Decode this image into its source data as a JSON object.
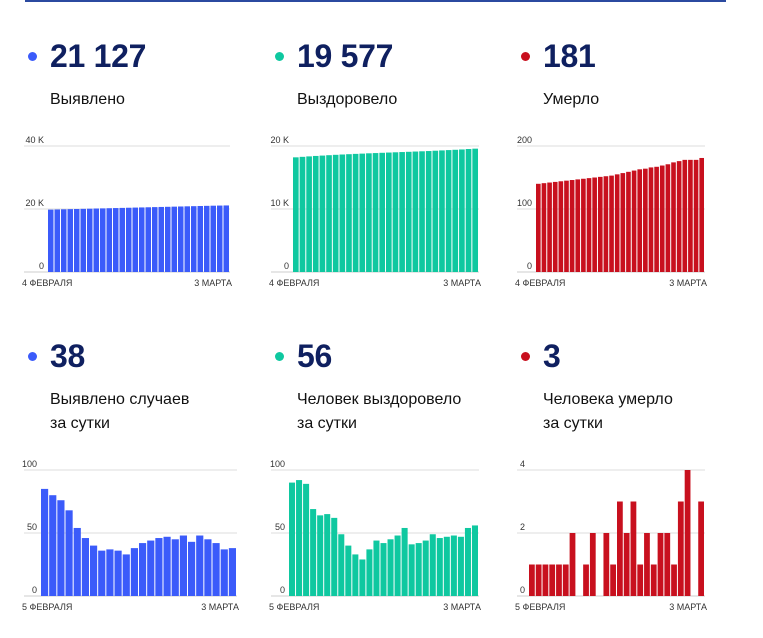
{
  "panels": [
    {
      "id": "detected",
      "color": "#3b5bfa",
      "value": "21 127",
      "label_lines": [
        "Выявлено"
      ],
      "chart_data": {
        "type": "bar",
        "title": "",
        "xlabel": "",
        "ylabel": "",
        "ylim": [
          0,
          40000
        ],
        "y_ticks": [
          0,
          20000,
          40000
        ],
        "y_tick_labels": [
          "0",
          "20 K",
          "40 K"
        ],
        "x_labels": [
          "4 ФЕВРАЛЯ",
          "3 МАРТА"
        ],
        "grid": true,
        "values": [
          19800,
          19850,
          19900,
          19960,
          20000,
          20050,
          20100,
          20160,
          20200,
          20250,
          20300,
          20350,
          20400,
          20450,
          20500,
          20550,
          20600,
          20650,
          20700,
          20750,
          20800,
          20850,
          20900,
          20950,
          21000,
          21050,
          21089,
          21127
        ]
      }
    },
    {
      "id": "recovered",
      "color": "#0fc8a0",
      "value": "19 577",
      "label_lines": [
        "Выздоровело"
      ],
      "chart_data": {
        "type": "bar",
        "title": "",
        "xlabel": "",
        "ylabel": "",
        "ylim": [
          0,
          20000
        ],
        "y_ticks": [
          0,
          10000,
          20000
        ],
        "y_tick_labels": [
          "0",
          "10 K",
          "20 K"
        ],
        "x_labels": [
          "4 ФЕВРАЛЯ",
          "3 МАРТА"
        ],
        "grid": true,
        "values": [
          18200,
          18280,
          18350,
          18420,
          18480,
          18540,
          18600,
          18650,
          18700,
          18750,
          18790,
          18840,
          18880,
          18920,
          18960,
          19000,
          19040,
          19080,
          19120,
          19160,
          19200,
          19250,
          19300,
          19350,
          19400,
          19450,
          19521,
          19577
        ]
      }
    },
    {
      "id": "died",
      "color": "#c8101e",
      "value": "181",
      "label_lines": [
        "Умерло"
      ],
      "chart_data": {
        "type": "bar",
        "title": "",
        "xlabel": "",
        "ylabel": "",
        "ylim": [
          0,
          200
        ],
        "y_ticks": [
          0,
          100,
          200
        ],
        "y_tick_labels": [
          "0",
          "100",
          "200"
        ],
        "x_labels": [
          "4 ФЕВРАЛЯ",
          "3 МАРТА"
        ],
        "grid": true,
        "values": [
          140,
          141,
          142,
          143,
          144,
          145,
          146,
          147,
          148,
          149,
          150,
          151,
          152,
          153,
          155,
          157,
          159,
          161,
          163,
          164,
          166,
          167,
          169,
          171,
          174,
          176,
          178,
          178,
          178,
          181
        ]
      }
    },
    {
      "id": "detected_daily",
      "color": "#3b5bfa",
      "value": "38",
      "label_lines": [
        "Выявлено случаев",
        "за сутки"
      ],
      "chart_data": {
        "type": "bar",
        "title": "",
        "xlabel": "",
        "ylabel": "",
        "ylim": [
          0,
          100
        ],
        "y_ticks": [
          0,
          50,
          100
        ],
        "y_tick_labels": [
          "0",
          "50",
          "100"
        ],
        "x_labels": [
          "5 ФЕВРАЛЯ",
          "3 МАРТА"
        ],
        "grid": true,
        "values": [
          85,
          80,
          76,
          68,
          54,
          46,
          40,
          36,
          37,
          36,
          33,
          38,
          42,
          44,
          46,
          47,
          45,
          48,
          43,
          48,
          45,
          42,
          37,
          38
        ]
      }
    },
    {
      "id": "recovered_daily",
      "color": "#0fc8a0",
      "value": "56",
      "label_lines": [
        "Человек выздоровело",
        "за сутки"
      ],
      "chart_data": {
        "type": "bar",
        "title": "",
        "xlabel": "",
        "ylabel": "",
        "ylim": [
          0,
          100
        ],
        "y_ticks": [
          0,
          50,
          100
        ],
        "y_tick_labels": [
          "0",
          "50",
          "100"
        ],
        "x_labels": [
          "5 ФЕВРАЛЯ",
          "3 МАРТА"
        ],
        "grid": true,
        "values": [
          90,
          92,
          89,
          69,
          64,
          65,
          62,
          49,
          40,
          33,
          29,
          37,
          44,
          42,
          45,
          48,
          54,
          41,
          42,
          44,
          49,
          46,
          47,
          48,
          47,
          54,
          56
        ]
      }
    },
    {
      "id": "died_daily",
      "color": "#c8101e",
      "value": "3",
      "label_lines": [
        "Человека умерло",
        "за сутки"
      ],
      "chart_data": {
        "type": "bar",
        "title": "",
        "xlabel": "",
        "ylabel": "",
        "ylim": [
          0,
          4
        ],
        "y_ticks": [
          0,
          2,
          4
        ],
        "y_tick_labels": [
          "0",
          "2",
          "4"
        ],
        "x_labels": [
          "5 ФЕВРАЛЯ",
          "3 МАРТА"
        ],
        "grid": true,
        "values": [
          1,
          1,
          1,
          1,
          1,
          1,
          2,
          0,
          1,
          2,
          0,
          2,
          1,
          3,
          2,
          3,
          1,
          2,
          1,
          2,
          2,
          1,
          3,
          4,
          0,
          3
        ]
      }
    }
  ]
}
